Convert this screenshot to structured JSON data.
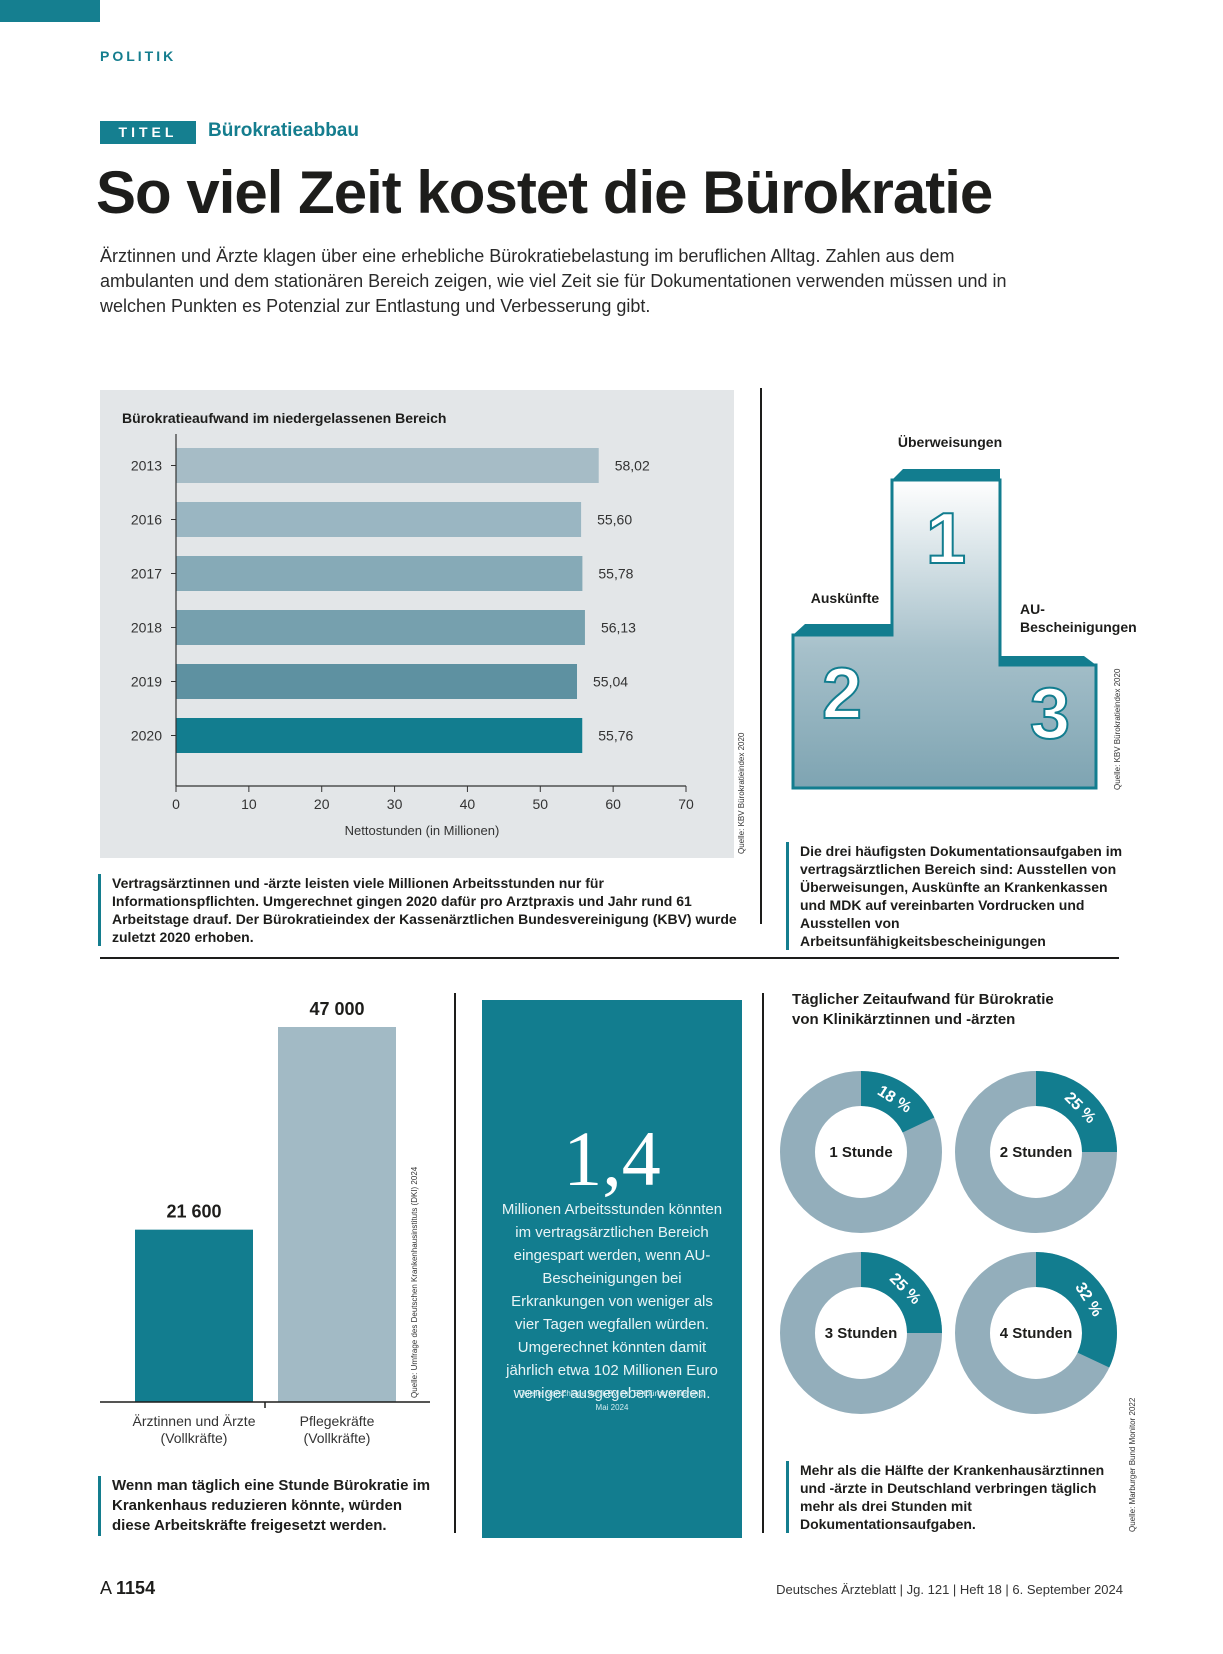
{
  "header": {
    "section": "POLITIK",
    "badge": "TITEL",
    "kicker": "Bürokratieabbau"
  },
  "article": {
    "headline": "So viel Zeit kostet die Bürokratie",
    "lead": "Ärztinnen und Ärzte klagen über eine erhebliche Bürokratiebelastung im beruflichen Alltag. Zahlen aus dem ambulanten und dem stationären Bereich zeigen, wie viel Zeit sie für Dokumentationen verwenden müssen und in welchen Punkten es Potenzial zur Entlastung und Verbesserung gibt."
  },
  "chart_data": [
    {
      "type": "bar",
      "orientation": "horizontal",
      "title": "Bürokratieaufwand im niedergelassenen Bereich",
      "categories": [
        "2013",
        "2016",
        "2017",
        "2018",
        "2019",
        "2020"
      ],
      "values": [
        58.02,
        55.6,
        55.78,
        56.13,
        55.04,
        55.76
      ],
      "value_labels": [
        "58,02",
        "55,60",
        "55,78",
        "56,13",
        "55,04",
        "55,76"
      ],
      "bar_colors": [
        "#a6bcc6",
        "#9ab6c2",
        "#86aab7",
        "#76a0ae",
        "#5e91a1",
        "#127d8f"
      ],
      "xlabel": "Nettostunden (in Millionen)",
      "xlim": [
        0,
        70
      ],
      "xticks": [
        "0",
        "10",
        "20",
        "30",
        "40",
        "50",
        "60",
        "70"
      ],
      "source": "Quelle: KBV Bürokratieindex 2020"
    },
    {
      "type": "bar",
      "categories": [
        "Ärztinnen und Ärzte (Vollkräfte)",
        "Pflegekräfte (Vollkräfte)"
      ],
      "category_lines": [
        [
          "Ärztinnen und Ärzte",
          "(Vollkräfte)"
        ],
        [
          "Pflegekräfte",
          "(Vollkräfte)"
        ]
      ],
      "values": [
        21600,
        47000
      ],
      "value_labels": [
        "21 600",
        "47 000"
      ],
      "bar_colors": [
        "#127d8f",
        "#a2bac5"
      ],
      "source": "Quelle: Umfrage des Deutschen Krankenhausinstituts (DKI) 2024"
    },
    {
      "type": "pie",
      "title": "Täglicher Zeitaufwand für Bürokratie von Klinikärztinnen und -ärzten",
      "title_lines": [
        "Täglicher Zeitaufwand für Bürokratie",
        "von Klinikärztinnen und -ärzten"
      ],
      "rings": [
        {
          "label": "1 Stunde",
          "percent": 18,
          "percent_label": "18 %"
        },
        {
          "label": "2 Stunden",
          "percent": 25,
          "percent_label": "25 %"
        },
        {
          "label": "3 Stunden",
          "percent": 25,
          "percent_label": "25 %"
        },
        {
          "label": "4 Stunden",
          "percent": 32,
          "percent_label": "32 %"
        }
      ],
      "colors": {
        "highlight": "#127d8f",
        "rest": "#93aebb"
      },
      "source": "Quelle: Marburger Bund Monitor 2022"
    }
  ],
  "podium": {
    "first": {
      "rank": "1",
      "label": "Überweisungen"
    },
    "second": {
      "rank": "2",
      "label": "Auskünfte"
    },
    "third": {
      "rank": "3",
      "label_lines": [
        "AU-",
        "Bescheinigungen"
      ]
    },
    "source": "Quelle: KBV Bürokratieindex 2020"
  },
  "notes": {
    "kbv": "Vertragsärztinnen und -ärzte leisten viele Millionen Arbeitsstunden nur für Informationspflichten. Umgerechnet gingen 2020 dafür pro Arztpraxis und Jahr rund 61 Arbeitstage drauf. Der Bürokratieindex der Kassenärztlichen Bundesvereinigung (KBV) wurde zuletzt 2020 erhoben.",
    "podium": "Die drei häufigsten Dokumentationsaufgaben im vertragsärztlichen Bereich sind: Ausstellen von Überweisungen, Auskünfte an Krankenkassen und MDK auf vereinbarten Vordrucken und Ausstellen von Arbeitsunfähigkeitsbescheinigungen",
    "staff": "Wenn man täglich eine Stunde Bürokratie im Krankenhaus reduzieren könnte, würden diese Arbeitskräfte freigesetzt werden.",
    "donuts": "Mehr als die Hälfte der Krankenhausärztinnen und -ärzte in Deutschland verbringen täglich mehr als drei Stunden mit Dokumentationsaufgaben."
  },
  "callout": {
    "number": "1,4",
    "text": "Millionen Arbeitsstunden könnten im vertragsärztlichen Bereich eingespart werden, wenn AU-Bescheinigungen bei Erkrankungen von weniger als vier Tagen wegfallen würden. Umgerechnet könnten damit jährlich etwa 102 Millionen Euro weniger ausgegeben werden.",
    "source": "Quelle: Vorschläge der KBV zur Entbürokratisierung, Mai 2024"
  },
  "footer": {
    "page_prefix": "A",
    "page_number": "1154",
    "publication": "Deutsches Ärzteblatt | Jg. 121 | Heft 18 | 6. September 2024"
  }
}
